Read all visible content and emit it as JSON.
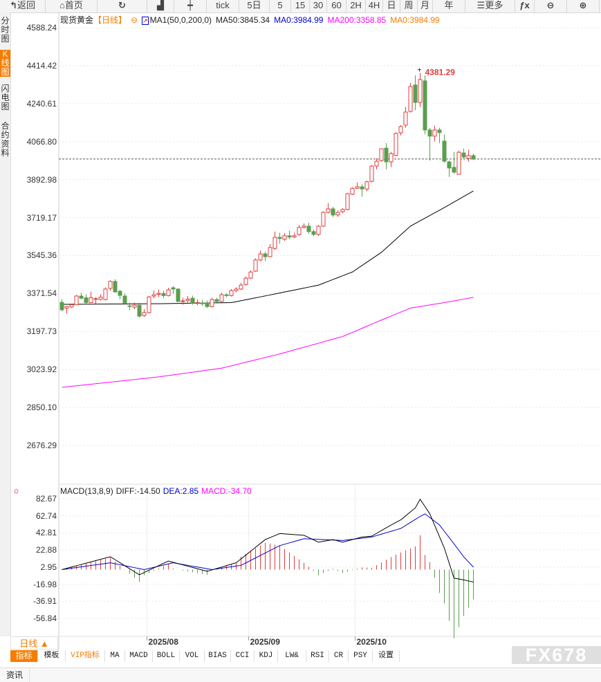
{
  "toolbar": {
    "buttons": [
      {
        "label": "返回",
        "icon": "back-arrow-icon"
      },
      {
        "label": "首页",
        "icon": "home-icon"
      },
      {
        "label": "",
        "icon": "refresh-icon"
      },
      {
        "label": "",
        "icon": "bar-chart-icon"
      },
      {
        "label": "",
        "icon": "candlestick-icon"
      },
      {
        "label": "tick"
      },
      {
        "label": "5日"
      },
      {
        "label": "5"
      },
      {
        "label": "15"
      },
      {
        "label": "30"
      },
      {
        "label": "60"
      },
      {
        "label": "2H"
      },
      {
        "label": "4H"
      },
      {
        "label": "日"
      },
      {
        "label": "周"
      },
      {
        "label": "月"
      },
      {
        "label": "年"
      },
      {
        "label": "更多",
        "icon": "menu-icon"
      },
      {
        "label": "",
        "icon": "function-fx-icon"
      },
      {
        "label": "",
        "icon": "zoom-out-icon"
      },
      {
        "label": "",
        "icon": "zoom-in-icon"
      }
    ]
  },
  "sidebar": {
    "tabs": [
      "分时图",
      "K线图",
      "闪电图",
      "合约资料"
    ],
    "active": 1
  },
  "legend": {
    "symbol": "现货黄金",
    "period": "【日线】",
    "ma_name": "MA1(50,0,200,0)",
    "ma50": "MA50:3845.34",
    "ma0": "MA0:3984.99",
    "ma200": "MA200:3358.85",
    "ma0b": "MA0:3984.99"
  },
  "macd_legend": {
    "name": "MACD(13,8,9)",
    "diff": "DIFF:-14.50",
    "dea": "DEA:2.85",
    "macd": "MACD:-34.70"
  },
  "colors": {
    "up": "#e03c3c",
    "down": "#5a9e4f",
    "ma50": "#000000",
    "ma200": "#ff00ff",
    "dea": "#0000cc",
    "diff": "#000000",
    "accent": "#f57c00",
    "last_price_line": "#1a73e8"
  },
  "chart_data": {
    "type": "candlestick",
    "y_ticks": [
      "4588.24",
      "4414.42",
      "4240.61",
      "4066.80",
      "3892.98",
      "3719.17",
      "3545.36",
      "3371.54",
      "3197.73",
      "3023.92",
      "2850.10",
      "2676.29"
    ],
    "ylim": [
      2676.29,
      4588.24
    ],
    "x_labels": [
      {
        "label": "2025/08",
        "index": 18
      },
      {
        "label": "2025/09",
        "index": 39
      },
      {
        "label": "2025/10",
        "index": 61
      }
    ],
    "high_label": "4381.29",
    "last_price": 3987,
    "ohlc": [
      [
        3331,
        3345,
        3290,
        3297
      ],
      [
        3305,
        3315,
        3280,
        3312
      ],
      [
        3310,
        3325,
        3305,
        3320
      ],
      [
        3320,
        3365,
        3318,
        3360
      ],
      [
        3360,
        3375,
        3345,
        3350
      ],
      [
        3352,
        3368,
        3320,
        3330
      ],
      [
        3330,
        3380,
        3330,
        3352
      ],
      [
        3345,
        3355,
        3325,
        3348
      ],
      [
        3345,
        3368,
        3340,
        3355
      ],
      [
        3344,
        3400,
        3340,
        3392
      ],
      [
        3395,
        3432,
        3385,
        3427
      ],
      [
        3427,
        3437,
        3375,
        3379
      ],
      [
        3382,
        3388,
        3345,
        3363
      ],
      [
        3360,
        3372,
        3320,
        3328
      ],
      [
        3315,
        3330,
        3295,
        3312
      ],
      [
        3309,
        3330,
        3300,
        3318
      ],
      [
        3318,
        3330,
        3262,
        3268
      ],
      [
        3271,
        3300,
        3265,
        3284
      ],
      [
        3284,
        3360,
        3280,
        3356
      ],
      [
        3360,
        3385,
        3350,
        3366
      ],
      [
        3368,
        3390,
        3355,
        3372
      ],
      [
        3372,
        3385,
        3350,
        3362
      ],
      [
        3362,
        3398,
        3358,
        3388
      ],
      [
        3398,
        3406,
        3370,
        3392
      ],
      [
        3392,
        3396,
        3333,
        3335
      ],
      [
        3338,
        3352,
        3320,
        3338
      ],
      [
        3340,
        3360,
        3330,
        3346
      ],
      [
        3350,
        3362,
        3320,
        3328
      ],
      [
        3330,
        3345,
        3318,
        3330
      ],
      [
        3328,
        3342,
        3315,
        3325
      ],
      [
        3328,
        3340,
        3305,
        3312
      ],
      [
        3312,
        3352,
        3308,
        3344
      ],
      [
        3344,
        3352,
        3325,
        3335
      ],
      [
        3335,
        3375,
        3332,
        3366
      ],
      [
        3366,
        3372,
        3355,
        3362
      ],
      [
        3362,
        3392,
        3358,
        3385
      ],
      [
        3385,
        3400,
        3378,
        3392
      ],
      [
        3392,
        3420,
        3388,
        3410
      ],
      [
        3413,
        3450,
        3408,
        3442
      ],
      [
        3442,
        3478,
        3438,
        3470
      ],
      [
        3474,
        3532,
        3470,
        3525
      ],
      [
        3525,
        3568,
        3520,
        3553
      ],
      [
        3553,
        3563,
        3520,
        3540
      ],
      [
        3540,
        3598,
        3538,
        3582
      ],
      [
        3578,
        3655,
        3570,
        3629
      ],
      [
        3629,
        3650,
        3600,
        3623
      ],
      [
        3620,
        3648,
        3612,
        3636
      ],
      [
        3636,
        3660,
        3620,
        3630
      ],
      [
        3630,
        3650,
        3625,
        3636
      ],
      [
        3642,
        3685,
        3635,
        3674
      ],
      [
        3674,
        3692,
        3670,
        3680
      ],
      [
        3680,
        3696,
        3645,
        3655
      ],
      [
        3655,
        3665,
        3635,
        3642
      ],
      [
        3642,
        3685,
        3635,
        3680
      ],
      [
        3680,
        3748,
        3676,
        3743
      ],
      [
        3743,
        3785,
        3738,
        3759
      ],
      [
        3759,
        3768,
        3722,
        3731
      ],
      [
        3731,
        3752,
        3722,
        3743
      ],
      [
        3746,
        3762,
        3740,
        3756
      ],
      [
        3756,
        3832,
        3752,
        3828
      ],
      [
        3826,
        3858,
        3822,
        3853
      ],
      [
        3853,
        3880,
        3850,
        3860
      ],
      [
        3860,
        3872,
        3815,
        3850
      ],
      [
        3850,
        3888,
        3840,
        3883
      ],
      [
        3885,
        3960,
        3880,
        3955
      ],
      [
        3955,
        3990,
        3940,
        3977
      ],
      [
        3980,
        4034,
        3975,
        4034
      ],
      [
        4037,
        4060,
        3940,
        3974
      ],
      [
        3974,
        4020,
        3950,
        4012
      ],
      [
        4003,
        4110,
        4000,
        4104
      ],
      [
        4107,
        4142,
        4095,
        4136
      ],
      [
        4142,
        4225,
        4130,
        4202
      ],
      [
        4205,
        4335,
        4200,
        4319
      ],
      [
        4326,
        4370,
        4210,
        4246
      ],
      [
        4246,
        4381,
        4225,
        4351
      ],
      [
        4345,
        4370,
        4100,
        4120
      ],
      [
        4120,
        4130,
        3980,
        4092
      ],
      [
        4092,
        4140,
        4068,
        4120
      ],
      [
        4120,
        4130,
        4060,
        4108
      ],
      [
        4069,
        4100,
        3970,
        3977
      ],
      [
        3974,
        3980,
        3905,
        3946
      ],
      [
        3949,
        4020,
        3920,
        3927
      ],
      [
        3917,
        4025,
        3915,
        4018
      ],
      [
        4015,
        4035,
        3988,
        3996
      ],
      [
        3990,
        4030,
        3975,
        4003
      ],
      [
        4003,
        4012,
        3982,
        3987
      ]
    ],
    "ma50": [
      [
        0,
        3322
      ],
      [
        20,
        3325
      ],
      [
        35,
        3330
      ],
      [
        43,
        3365
      ],
      [
        53,
        3410
      ],
      [
        60,
        3470
      ],
      [
        66,
        3560
      ],
      [
        72,
        3680
      ],
      [
        79,
        3765
      ],
      [
        85,
        3841
      ]
    ],
    "ma200": [
      [
        0,
        2942
      ],
      [
        20,
        2990
      ],
      [
        33,
        3030
      ],
      [
        45,
        3095
      ],
      [
        58,
        3175
      ],
      [
        66,
        3250
      ],
      [
        72,
        3305
      ],
      [
        79,
        3330
      ],
      [
        85,
        3354
      ]
    ],
    "macd": {
      "y_ticks": [
        "82.67",
        "62.74",
        "42.81",
        "22.88",
        "2.95",
        "-16.98",
        "-36.91",
        "-56.84"
      ],
      "ylim": [
        -56.84,
        82.67
      ],
      "diff": [
        [
          0,
          0
        ],
        [
          10,
          15
        ],
        [
          16,
          -6
        ],
        [
          22,
          10
        ],
        [
          30,
          -2
        ],
        [
          36,
          8
        ],
        [
          42,
          35
        ],
        [
          45,
          42
        ],
        [
          50,
          40
        ],
        [
          53,
          32
        ],
        [
          56,
          35
        ],
        [
          58,
          32
        ],
        [
          62,
          38
        ],
        [
          64,
          39
        ],
        [
          68,
          52
        ],
        [
          70,
          58
        ],
        [
          73,
          72
        ],
        [
          74,
          82
        ],
        [
          76,
          65
        ],
        [
          79,
          25
        ],
        [
          81,
          -10
        ],
        [
          83,
          -12
        ],
        [
          85,
          -14.5
        ]
      ],
      "dea": [
        [
          0,
          0
        ],
        [
          10,
          8
        ],
        [
          17,
          0
        ],
        [
          23,
          8
        ],
        [
          31,
          0
        ],
        [
          37,
          5
        ],
        [
          45,
          28
        ],
        [
          50,
          36
        ],
        [
          58,
          34
        ],
        [
          64,
          38
        ],
        [
          70,
          48
        ],
        [
          74,
          62
        ],
        [
          75,
          65
        ],
        [
          78,
          52
        ],
        [
          81,
          30
        ],
        [
          83,
          15
        ],
        [
          85,
          2.85
        ]
      ]
    }
  },
  "period_button": "日线 ▲",
  "tabs": [
    "指标",
    "模板",
    "VIP指标",
    "MA",
    "MACD",
    "BOLL",
    "VOL",
    "BIAS",
    "CCI",
    "KDJ",
    "LW&",
    "RSI",
    "CR",
    "PSY",
    "设置"
  ],
  "bottom": {
    "news": "资讯"
  },
  "watermark": "FX678"
}
